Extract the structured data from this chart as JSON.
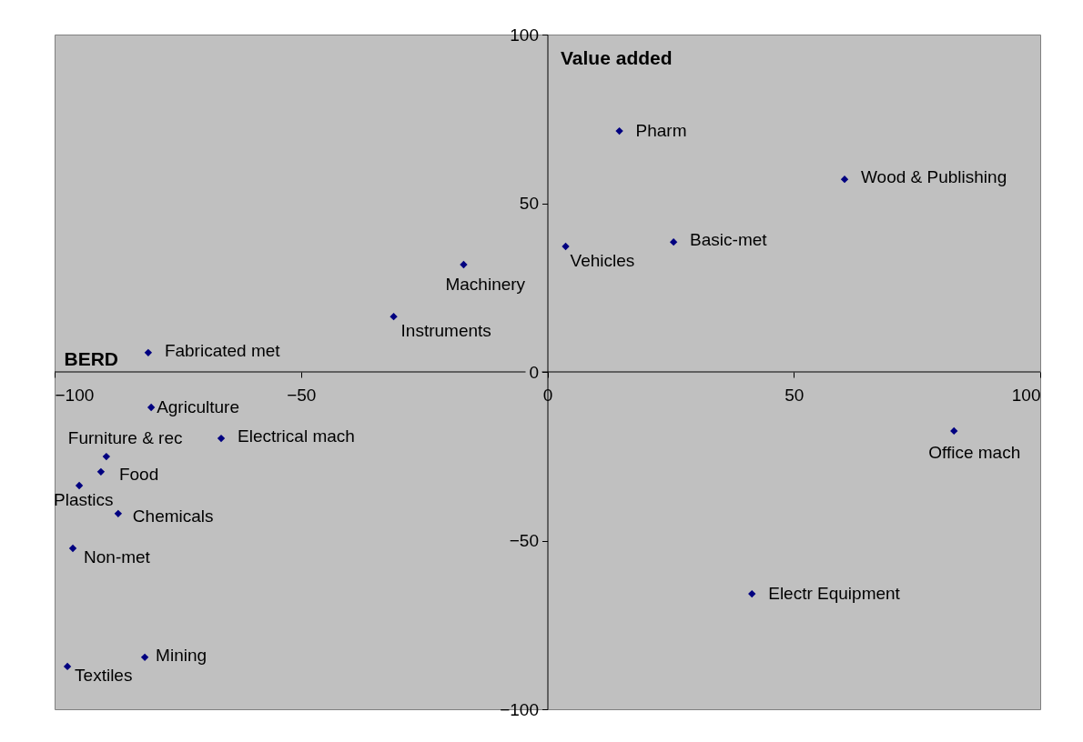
{
  "chart_data": {
    "type": "scatter",
    "xlabel": "BERD",
    "ylabel": "Value added",
    "x": [
      14.6,
      60.3,
      25.6,
      3.7,
      -17.0,
      -31.2,
      -81.0,
      -80.4,
      -66.2,
      -89.5,
      -90.6,
      -95.0,
      -87.1,
      -96.3,
      -81.7,
      -97.4,
      82.5,
      41.5
    ],
    "series": [
      {
        "color": "#000080",
        "values": [
          71.4,
          57.1,
          38.5,
          37.2,
          31.8,
          16.4,
          5.7,
          -10.5,
          -19.7,
          -25.1,
          -29.6,
          -33.7,
          -42.0,
          -52.3,
          -84.6,
          -87.3,
          -17.5,
          -65.8
        ]
      }
    ],
    "annotations": [
      {
        "text": "Pharm",
        "x": 14.6,
        "y": 71.4
      },
      {
        "text": "Wood & Publishing",
        "x": 60.3,
        "y": 57.1
      },
      {
        "text": "Basic-met",
        "x": 25.6,
        "y": 38.5
      },
      {
        "text": "Vehicles",
        "x": 3.7,
        "y": 37.2
      },
      {
        "text": "Machinery",
        "x": -17.0,
        "y": 31.8
      },
      {
        "text": "Instruments",
        "x": -31.2,
        "y": 16.4
      },
      {
        "text": "Fabricated met",
        "x": -81.0,
        "y": 5.7
      },
      {
        "text": "Agriculture",
        "x": -80.4,
        "y": -10.5
      },
      {
        "text": "Electrical mach",
        "x": -66.2,
        "y": -19.7
      },
      {
        "text": "Furniture & rec",
        "x": -89.5,
        "y": -25.1
      },
      {
        "text": "Food",
        "x": -90.6,
        "y": -29.6
      },
      {
        "text": "Plastics",
        "x": -95.0,
        "y": -33.7
      },
      {
        "text": "Chemicals",
        "x": -87.1,
        "y": -42.0
      },
      {
        "text": "Non-met",
        "x": -96.3,
        "y": -52.3
      },
      {
        "text": "Mining",
        "x": -81.7,
        "y": -84.6
      },
      {
        "text": "Textiles",
        "x": -97.4,
        "y": -87.3
      },
      {
        "text": "Office mach",
        "x": 82.5,
        "y": -17.5
      },
      {
        "text": "Electr Equipment",
        "x": 41.5,
        "y": -65.8
      }
    ],
    "xlim": [
      -100,
      100
    ],
    "ylim": [
      -100,
      100
    ],
    "xticks": [
      -100,
      -50,
      0,
      50,
      100
    ],
    "yticks": [
      -100,
      -50,
      0,
      50,
      100
    ],
    "marker": "diamond",
    "grid": false
  }
}
